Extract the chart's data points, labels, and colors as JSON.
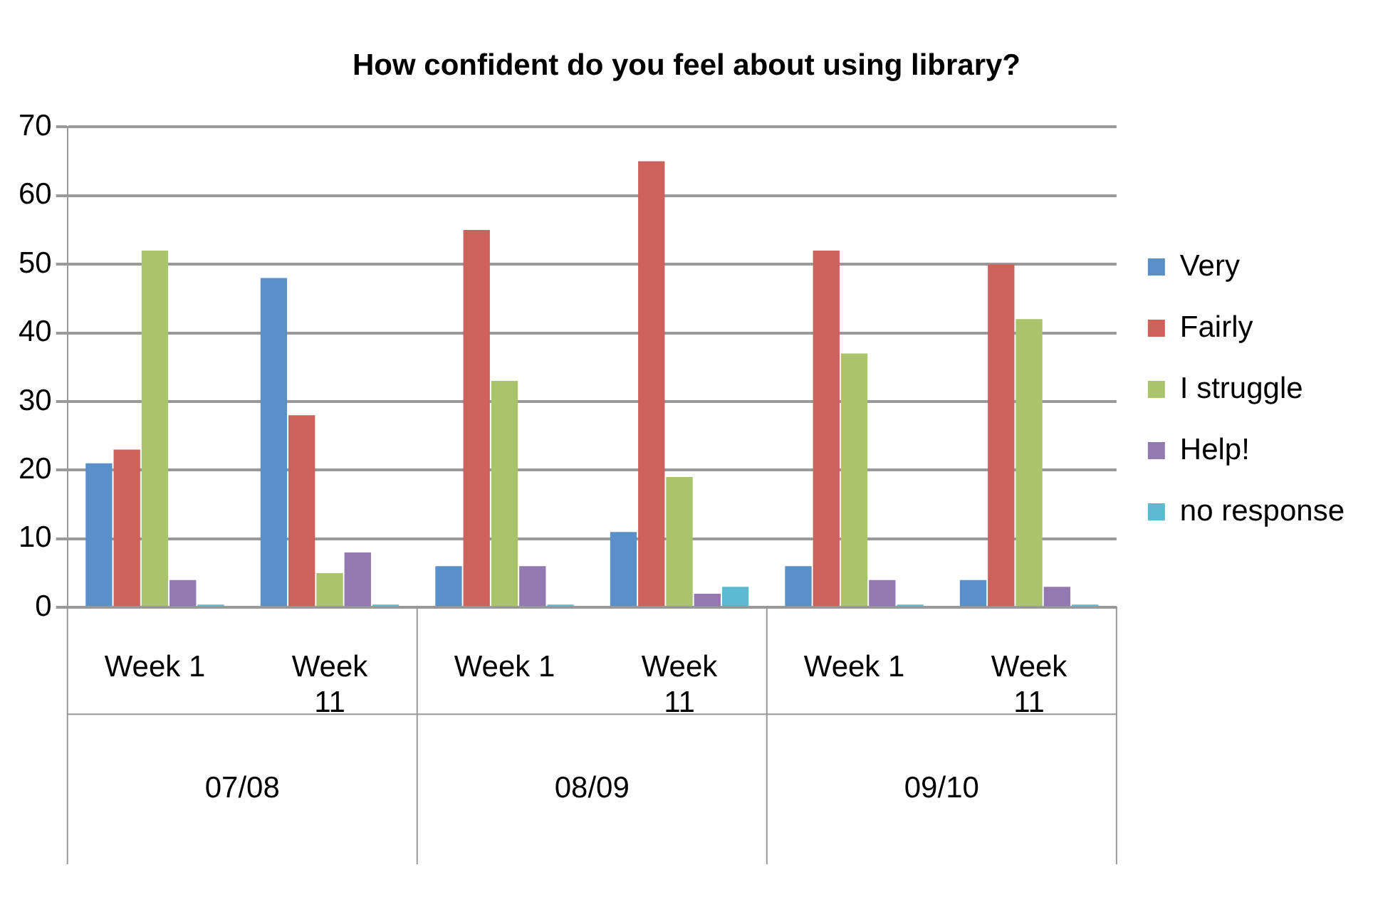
{
  "chart_data": {
    "type": "bar",
    "title": "How confident do you feel about using library?",
    "categories": [
      "Week 1",
      "Week 11",
      "Week 1",
      "Week 11",
      "Week 1",
      "Week 11"
    ],
    "annotations": [
      "07/08",
      "08/09",
      "09/10"
    ],
    "series": [
      {
        "name": "Very",
        "color": "#5b8fc7",
        "values": [
          21,
          48,
          6,
          11,
          6,
          4
        ]
      },
      {
        "name": "Fairly",
        "color": "#cd625c",
        "values": [
          23,
          28,
          55,
          65,
          52,
          50
        ]
      },
      {
        "name": "I struggle",
        "color": "#aac46b",
        "values": [
          52,
          5,
          33,
          19,
          37,
          42
        ]
      },
      {
        "name": "Help!",
        "color": "#9279b0",
        "values": [
          4,
          8,
          6,
          2,
          4,
          3
        ]
      },
      {
        "name": "no response",
        "color": "#5bbad0",
        "values": [
          0,
          0,
          0,
          3,
          0,
          0
        ]
      }
    ],
    "ylim": [
      0,
      70
    ],
    "yticks": [
      0,
      10,
      20,
      30,
      40,
      50,
      60,
      70
    ],
    "grid": "y",
    "legend": "right"
  }
}
